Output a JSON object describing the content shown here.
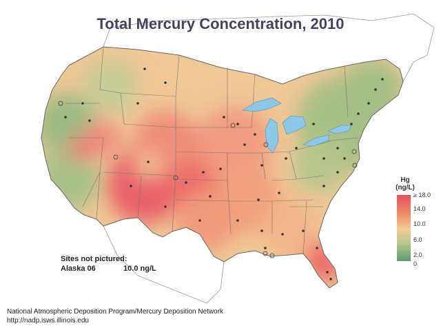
{
  "title": "Total Mercury Concentration, 2010",
  "legend": {
    "title_line1": "Hg",
    "title_line2": "(ng/L)",
    "ticks": [
      "≥ 18.0",
      "14.0",
      "10.0",
      "6.0",
      "2.0",
      "0"
    ],
    "colors": [
      "#e8505a",
      "#ef8f6e",
      "#f2cd94",
      "#b8c88e",
      "#5f9a6e"
    ]
  },
  "sites_not_pictured": {
    "heading": "Sites not pictured:",
    "sites": [
      {
        "name": "Alaska 06",
        "value": "10.0 ng/L"
      }
    ]
  },
  "footer": {
    "line1": "National Atmospheric Deposition Program/Mercury Deposition Network",
    "line2": "http://nadp.isws.illinois.edu"
  }
}
